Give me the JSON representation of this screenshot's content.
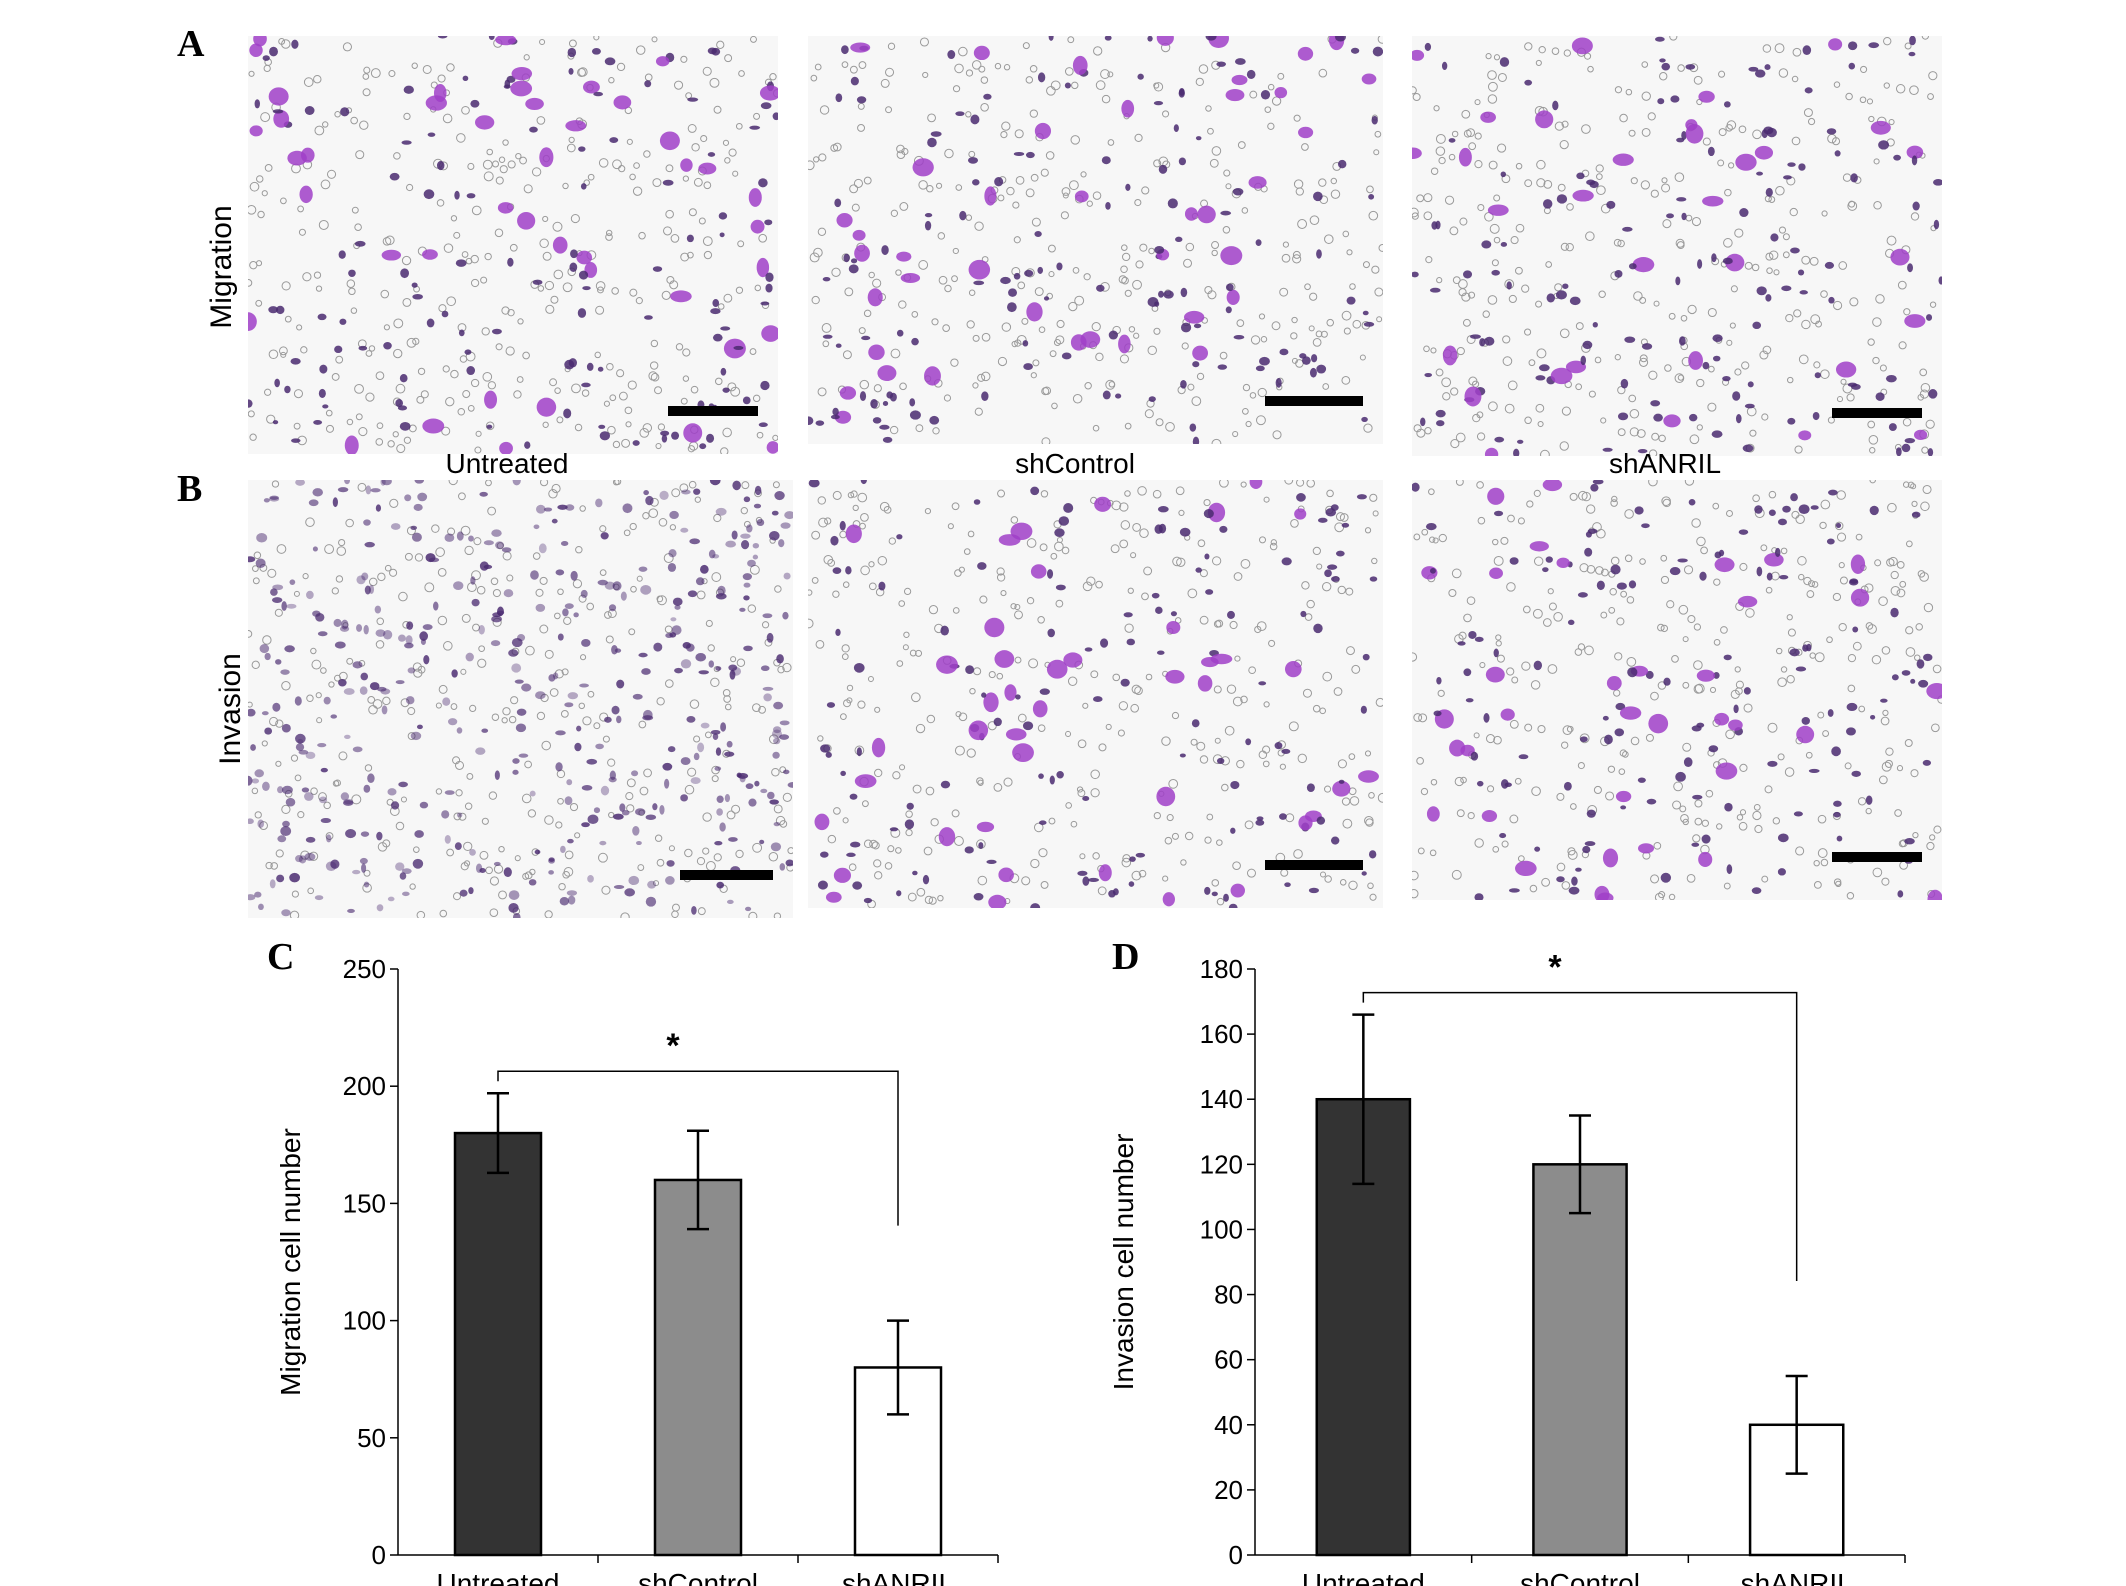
{
  "panels": {
    "a": "A",
    "b": "B",
    "c": "C",
    "d": "D"
  },
  "micrographs": {
    "row_labels": [
      "Migration",
      "Invasion"
    ],
    "conditions": [
      "Untreated",
      "shControl",
      "shANRIL"
    ],
    "stain_color": "#a040c8",
    "dark_cell_color": "#4a2a70"
  },
  "chart_data": [
    {
      "type": "bar",
      "title": "",
      "categories": [
        "Untreated",
        "shControl",
        "shANRIL"
      ],
      "values": [
        180,
        160,
        80
      ],
      "errors": [
        17,
        21,
        20
      ],
      "bar_colors": [
        "#333333",
        "#8c8c8c",
        "#ffffff"
      ],
      "xlabel": "",
      "ylabel": "Migration cell number",
      "ylim": [
        0,
        250
      ],
      "yticks": [
        0,
        50,
        100,
        150,
        200,
        250
      ],
      "grid": false,
      "significance": {
        "from": "Untreated",
        "to": "shANRIL",
        "label": "*"
      }
    },
    {
      "type": "bar",
      "title": "",
      "categories": [
        "Untreated",
        "shControl",
        "shANRIL"
      ],
      "values": [
        140,
        120,
        40
      ],
      "errors": [
        26,
        15,
        15
      ],
      "bar_colors": [
        "#333333",
        "#8c8c8c",
        "#ffffff"
      ],
      "xlabel": "",
      "ylabel": "Invasion cell number",
      "ylim": [
        0,
        180
      ],
      "yticks": [
        0,
        20,
        40,
        60,
        80,
        100,
        120,
        140,
        160,
        180
      ],
      "grid": false,
      "significance": {
        "from": "Untreated",
        "to": "shANRIL",
        "label": "*"
      }
    }
  ]
}
